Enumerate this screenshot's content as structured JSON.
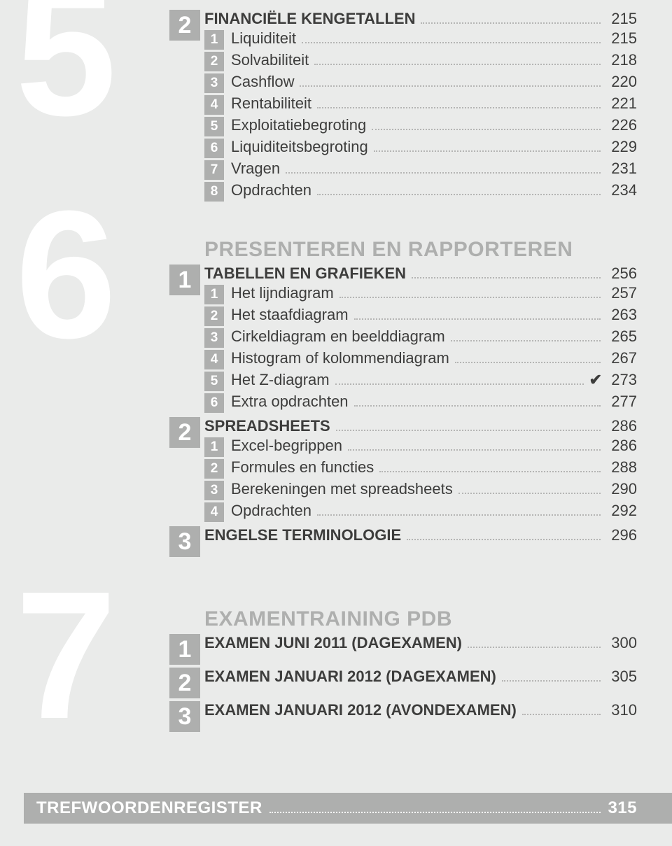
{
  "chapters": {
    "c5": "5",
    "c6": "6",
    "c7": "7"
  },
  "ch5": {
    "sub": "2",
    "heading": {
      "label": "FINANCIËLE KENGETALLEN",
      "page": "215"
    },
    "items": [
      {
        "num": "1",
        "label": "Liquiditeit",
        "page": "215"
      },
      {
        "num": "2",
        "label": "Solvabiliteit",
        "page": "218"
      },
      {
        "num": "3",
        "label": "Cashflow",
        "page": "220"
      },
      {
        "num": "4",
        "label": "Rentabiliteit",
        "page": "221"
      },
      {
        "num": "5",
        "label": "Exploitatiebegroting",
        "page": "226"
      },
      {
        "num": "6",
        "label": "Liquiditeitsbegroting",
        "page": "229"
      },
      {
        "num": "7",
        "label": "Vragen",
        "page": "231"
      },
      {
        "num": "8",
        "label": "Opdrachten",
        "page": "234"
      }
    ]
  },
  "ch6": {
    "section_header": "PRESENTEREN EN RAPPORTEREN",
    "sub1": {
      "num": "1",
      "heading": {
        "label": "TABELLEN EN GRAFIEKEN",
        "page": "256"
      },
      "items": [
        {
          "num": "1",
          "label": "Het lijndiagram",
          "page": "257"
        },
        {
          "num": "2",
          "label": "Het staafdiagram",
          "page": "263"
        },
        {
          "num": "3",
          "label": "Cirkeldiagram en beelddiagram",
          "page": "265"
        },
        {
          "num": "4",
          "label": "Histogram of kolommendiagram",
          "page": "267"
        },
        {
          "num": "5",
          "label": "Het Z-diagram",
          "page": "273",
          "check": true
        },
        {
          "num": "6",
          "label": "Extra opdrachten",
          "page": "277"
        }
      ]
    },
    "sub2": {
      "num": "2",
      "heading": {
        "label": "SPREADSHEETS",
        "page": "286"
      },
      "items": [
        {
          "num": "1",
          "label": "Excel-begrippen",
          "page": "286"
        },
        {
          "num": "2",
          "label": "Formules en functies",
          "page": "288"
        },
        {
          "num": "3",
          "label": "Berekeningen met spreadsheets",
          "page": "290"
        },
        {
          "num": "4",
          "label": "Opdrachten",
          "page": "292"
        }
      ]
    },
    "sub3": {
      "num": "3",
      "heading": {
        "label": "ENGELSE TERMINOLOGIE",
        "page": "296"
      }
    }
  },
  "ch7": {
    "section_header": "EXAMENTRAINING PDB",
    "subs": [
      {
        "num": "1",
        "label": "EXAMEN JUNI 2011 (DAGEXAMEN)",
        "page": "300"
      },
      {
        "num": "2",
        "label": "EXAMEN JANUARI 2012 (DAGEXAMEN)",
        "page": "305"
      },
      {
        "num": "3",
        "label": "EXAMEN JANUARI 2012 (AVONDEXAMEN)",
        "page": "310"
      }
    ]
  },
  "footer": {
    "label": "TREFWOORDENREGISTER",
    "page": "315"
  },
  "checkmark": "✔"
}
